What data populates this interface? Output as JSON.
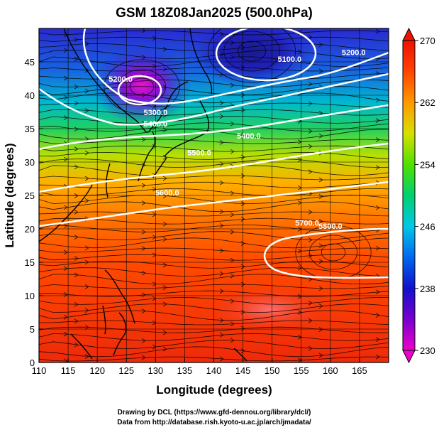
{
  "title": "GSM 18Z08Jan2025 (500.0hPa)",
  "xlabel": "Longitude (degrees)",
  "ylabel": "Latitude  (degrees)",
  "x_ticks": [
    "110",
    "115",
    "120",
    "125",
    "130",
    "135",
    "140",
    "145",
    "150",
    "155",
    "160",
    "165"
  ],
  "y_ticks": [
    "0",
    "5",
    "10",
    "15",
    "20",
    "25",
    "30",
    "35",
    "40",
    "45"
  ],
  "colorbar": {
    "ticks": [
      "230",
      "238",
      "246",
      "254",
      "262",
      "270"
    ],
    "colors": [
      "#ee00cc",
      "#7a00cc",
      "#1111cc",
      "#0066ee",
      "#00c8e8",
      "#00d070",
      "#50e000",
      "#d8e000",
      "#ff9900",
      "#ff4400",
      "#ee1100"
    ]
  },
  "credits": [
    "Drawing by DCL (https://www.gfd-dennou.org/library/dcl/)",
    "Data from http://database.rish.kyoto-u.ac.jp/arch/jmadata/"
  ],
  "chart_data": {
    "type": "heatmap",
    "variable": "temperature (K)",
    "xlim": [
      110,
      170
    ],
    "ylim": [
      0,
      50
    ],
    "clim": [
      230,
      270
    ],
    "contours": [
      {
        "label": "5100.0",
        "lon": 153,
        "lat": 45
      },
      {
        "label": "5200.0",
        "lon": 164,
        "lat": 46
      },
      {
        "label": "5200.0",
        "lon": 124,
        "lat": 42
      },
      {
        "label": "5300.0",
        "lon": 130,
        "lat": 37
      },
      {
        "label": "5400.0",
        "lon": 130,
        "lat": 35.3
      },
      {
        "label": "5400.0",
        "lon": 146,
        "lat": 33.5
      },
      {
        "label": "5500.0",
        "lon": 137.5,
        "lat": 31
      },
      {
        "label": "5600.0",
        "lon": 132,
        "lat": 25
      },
      {
        "label": "5700.0",
        "lon": 156,
        "lat": 20.5
      },
      {
        "label": "5800.0",
        "lon": 160,
        "lat": 20
      }
    ]
  }
}
